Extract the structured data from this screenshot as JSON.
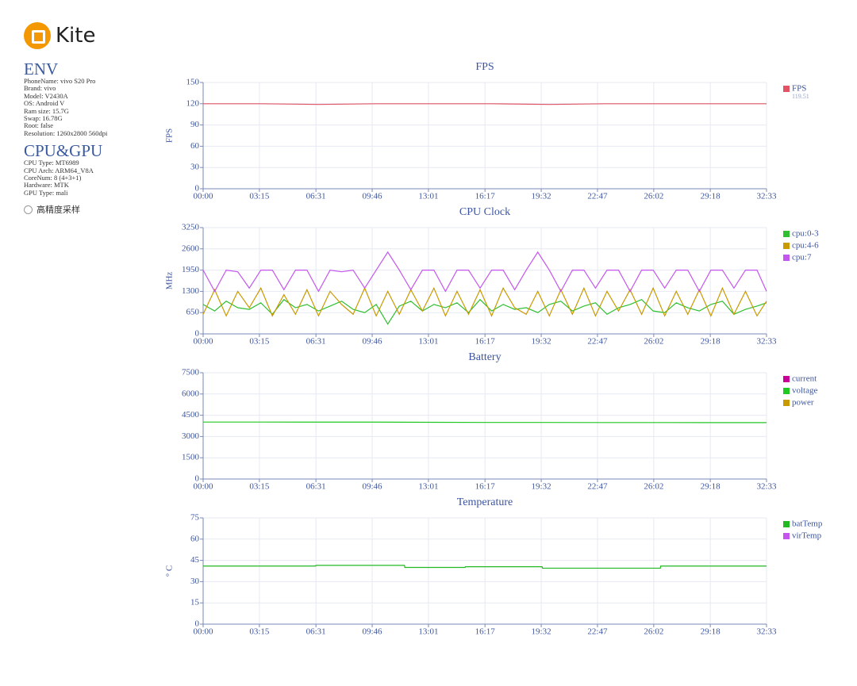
{
  "logo": "Kite",
  "env": {
    "title": "ENV",
    "lines": [
      "PhoneName: vivo S20 Pro",
      "Brand: vivo",
      "Model: V2430A",
      "OS: Android V",
      "Ram size: 15.7G",
      "Swap: 16.78G",
      "Root: false",
      "Resolution: 1260x2800 560dpi"
    ]
  },
  "cpu_gpu": {
    "title": "CPU&GPU",
    "lines": [
      "CPU Type: MT6989",
      "CPU Arch: ARM64_V8A",
      "CoreNum: 8 (4+3+1)",
      "Hardware: MTK",
      "GPU Type: mali"
    ]
  },
  "option": "高精度采样",
  "chart_data": [
    {
      "type": "line",
      "title": "FPS",
      "ylabel": "FPS",
      "ylim": [
        0,
        150
      ],
      "yticks": [
        0,
        30,
        60,
        90,
        120,
        150
      ],
      "xlim": [
        0,
        1953
      ],
      "xticks": [
        {
          "value": 0,
          "label": "00:00"
        },
        {
          "value": 195,
          "label": "03:15"
        },
        {
          "value": 391,
          "label": "06:31"
        },
        {
          "value": 586,
          "label": "09:46"
        },
        {
          "value": 781,
          "label": "13:01"
        },
        {
          "value": 977,
          "label": "16:17"
        },
        {
          "value": 1172,
          "label": "19:32"
        },
        {
          "value": 1367,
          "label": "22:47"
        },
        {
          "value": 1562,
          "label": "26:02"
        },
        {
          "value": 1758,
          "label": "29:18"
        },
        {
          "value": 1953,
          "label": "32:33"
        }
      ],
      "grid": true,
      "x": [
        0,
        200,
        400,
        600,
        800,
        1000,
        1200,
        1400,
        1600,
        1800,
        1953
      ],
      "series": [
        {
          "name": "FPS",
          "color": "#e05466",
          "last_value": 119.51,
          "values": [
            120,
            120,
            119,
            120,
            120,
            120,
            119,
            120,
            120,
            120,
            120
          ]
        }
      ]
    },
    {
      "type": "line",
      "title": "CPU Clock",
      "ylabel": "MHz",
      "ylim": [
        0,
        3250
      ],
      "yticks": [
        0,
        650,
        1300,
        1950,
        2600,
        3250
      ],
      "xlim": [
        0,
        1953
      ],
      "xticks": [
        {
          "value": 0,
          "label": "00:00"
        },
        {
          "value": 195,
          "label": "03:15"
        },
        {
          "value": 391,
          "label": "06:31"
        },
        {
          "value": 586,
          "label": "09:46"
        },
        {
          "value": 781,
          "label": "13:01"
        },
        {
          "value": 977,
          "label": "16:17"
        },
        {
          "value": 1172,
          "label": "19:32"
        },
        {
          "value": 1367,
          "label": "22:47"
        },
        {
          "value": 1562,
          "label": "26:02"
        },
        {
          "value": 1758,
          "label": "29:18"
        },
        {
          "value": 1953,
          "label": "32:33"
        }
      ],
      "grid": true,
      "x": [
        0,
        40,
        80,
        120,
        160,
        200,
        240,
        280,
        320,
        360,
        400,
        440,
        480,
        520,
        560,
        600,
        640,
        680,
        720,
        760,
        800,
        840,
        880,
        920,
        960,
        1000,
        1040,
        1080,
        1120,
        1160,
        1200,
        1240,
        1280,
        1320,
        1360,
        1400,
        1440,
        1480,
        1520,
        1560,
        1600,
        1640,
        1680,
        1720,
        1760,
        1800,
        1840,
        1880,
        1920,
        1953
      ],
      "series": [
        {
          "name": "cpu:0-3",
          "color": "#2fbf2f",
          "values": [
            900,
            700,
            1000,
            800,
            750,
            950,
            600,
            1050,
            800,
            900,
            700,
            850,
            1000,
            750,
            650,
            900,
            300,
            850,
            1000,
            700,
            900,
            800,
            950,
            650,
            1050,
            700,
            900,
            750,
            800,
            650,
            900,
            1000,
            700,
            850,
            950,
            600,
            800,
            900,
            1050,
            700,
            650,
            950,
            800,
            700,
            900,
            1000,
            600,
            750,
            850,
            950
          ]
        },
        {
          "name": "cpu:4-6",
          "color": "#c99a00",
          "values": [
            600,
            1350,
            550,
            1300,
            800,
            1400,
            550,
            1200,
            600,
            1350,
            550,
            1300,
            900,
            600,
            1400,
            550,
            1300,
            600,
            1350,
            700,
            1400,
            550,
            1300,
            600,
            1350,
            550,
            1400,
            800,
            600,
            1300,
            550,
            1350,
            600,
            1400,
            550,
            1300,
            700,
            1350,
            600,
            1400,
            550,
            1300,
            600,
            1350,
            550,
            1400,
            600,
            1300,
            550,
            1000
          ]
        },
        {
          "name": "cpu:7",
          "color": "#c455ee",
          "values": [
            1950,
            1300,
            1950,
            1900,
            1400,
            1950,
            1950,
            1350,
            1950,
            1950,
            1300,
            1950,
            1900,
            1950,
            1400,
            1950,
            2500,
            1950,
            1350,
            1950,
            1950,
            1300,
            1950,
            1950,
            1400,
            1950,
            1950,
            1350,
            1950,
            2500,
            1950,
            1300,
            1950,
            1950,
            1400,
            1950,
            1950,
            1300,
            1950,
            1950,
            1400,
            1950,
            1950,
            1300,
            1950,
            1950,
            1400,
            1950,
            1950,
            1300
          ]
        }
      ]
    },
    {
      "type": "line",
      "title": "Battery",
      "ylim": [
        0,
        7500
      ],
      "yticks": [
        0,
        1500,
        3000,
        4500,
        6000,
        7500
      ],
      "xlim": [
        0,
        1953
      ],
      "xticks": [
        {
          "value": 0,
          "label": "00:00"
        },
        {
          "value": 195,
          "label": "03:15"
        },
        {
          "value": 391,
          "label": "06:31"
        },
        {
          "value": 586,
          "label": "09:46"
        },
        {
          "value": 781,
          "label": "13:01"
        },
        {
          "value": 977,
          "label": "16:17"
        },
        {
          "value": 1172,
          "label": "19:32"
        },
        {
          "value": 1367,
          "label": "22:47"
        },
        {
          "value": 1562,
          "label": "26:02"
        },
        {
          "value": 1758,
          "label": "29:18"
        },
        {
          "value": 1953,
          "label": "32:33"
        }
      ],
      "grid": true,
      "x": [
        0,
        200,
        400,
        600,
        800,
        1000,
        1200,
        1400,
        1600,
        1800,
        1953
      ],
      "series": [
        {
          "name": "current",
          "color": "#c8009a",
          "values": [
            null,
            null,
            null,
            null,
            null,
            null,
            null,
            null,
            null,
            null,
            null
          ]
        },
        {
          "name": "voltage",
          "color": "#22c822",
          "values": [
            4020,
            4020,
            4015,
            4015,
            4000,
            3990,
            3990,
            3985,
            3985,
            3980,
            3980
          ]
        },
        {
          "name": "power",
          "color": "#c99a00",
          "values": [
            null,
            null,
            null,
            null,
            null,
            null,
            null,
            null,
            null,
            null,
            null
          ]
        }
      ]
    },
    {
      "type": "line",
      "title": "Temperature",
      "ylabel": "° C",
      "ylim": [
        0,
        75
      ],
      "yticks": [
        0,
        15,
        30,
        45,
        60,
        75
      ],
      "xlim": [
        0,
        1953
      ],
      "xticks": [
        {
          "value": 0,
          "label": "00:00"
        },
        {
          "value": 195,
          "label": "03:15"
        },
        {
          "value": 391,
          "label": "06:31"
        },
        {
          "value": 586,
          "label": "09:46"
        },
        {
          "value": 781,
          "label": "13:01"
        },
        {
          "value": 977,
          "label": "16:17"
        },
        {
          "value": 1172,
          "label": "19:32"
        },
        {
          "value": 1367,
          "label": "22:47"
        },
        {
          "value": 1562,
          "label": "26:02"
        },
        {
          "value": 1758,
          "label": "29:18"
        },
        {
          "value": 1953,
          "label": "32:33"
        }
      ],
      "grid": true,
      "x": [
        0,
        390,
        391,
        698,
        699,
        908,
        909,
        1175,
        1176,
        1585,
        1586,
        1953
      ],
      "series": [
        {
          "name": "batTemp",
          "color": "#22b822",
          "values": [
            41,
            41,
            41.5,
            41.5,
            40,
            40,
            40.5,
            40.5,
            39.5,
            39.5,
            41,
            41
          ]
        },
        {
          "name": "virTemp",
          "color": "#c455ee",
          "values": [
            null,
            null,
            null,
            null,
            null,
            null,
            null,
            null,
            null,
            null,
            null,
            null
          ]
        }
      ]
    }
  ]
}
